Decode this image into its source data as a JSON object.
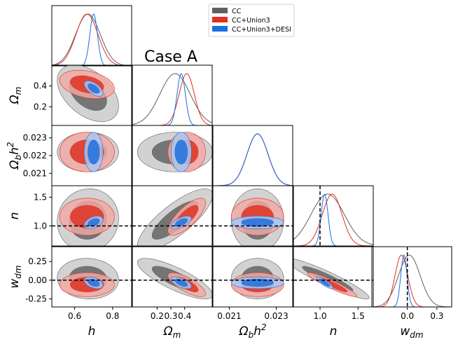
{
  "chart_data": {
    "type": "triangle-corner",
    "title": "Case A",
    "legend_placement": "top-right",
    "parameters": [
      {
        "key": "h",
        "label_base": "h",
        "label_sub": "",
        "label_sup": "",
        "range": [
          0.48,
          0.9
        ],
        "ticks": [
          "0.6",
          "0.8"
        ],
        "tick_values": [
          0.6,
          0.8
        ]
      },
      {
        "key": "Om",
        "label_base": "Ω",
        "label_sub": "m",
        "label_sup": "",
        "range": [
          0.02,
          0.6
        ],
        "ticks": [
          "0.2",
          "0.3",
          "0.4"
        ],
        "tick_values": [
          0.2,
          0.3,
          0.4
        ],
        "row_ticks": [
          "0.2",
          "0.4"
        ],
        "row_tick_values": [
          0.2,
          0.4
        ]
      },
      {
        "key": "Obh2",
        "label_base": "Ω",
        "label_sub": "b",
        "label_sup": "2",
        "label_mid": "h",
        "range": [
          0.0203,
          0.0237
        ],
        "ticks": [
          "0.021",
          "0.023"
        ],
        "tick_values": [
          0.021,
          0.023
        ],
        "row_ticks": [
          "0.021",
          "0.022",
          "0.023"
        ],
        "row_tick_values": [
          0.021,
          0.022,
          0.023
        ]
      },
      {
        "key": "n",
        "label_base": "n",
        "label_sub": "",
        "label_sup": "",
        "range": [
          0.65,
          1.7
        ],
        "ticks": [
          "1.0",
          "1.5"
        ],
        "tick_values": [
          1.0,
          1.5
        ]
      },
      {
        "key": "wdm",
        "label_base": "w",
        "label_sub": "dm",
        "label_sup": "",
        "range": [
          -0.36,
          0.45
        ],
        "ticks": [
          "-0.25",
          "0.00",
          "0.25"
        ],
        "tick_values": [
          -0.25,
          0.0,
          0.25
        ],
        "col_ticks": [
          "0.0",
          "0.3"
        ],
        "col_tick_values": [
          0.0,
          0.3
        ]
      }
    ],
    "reference_lines": [
      {
        "param": "n",
        "value": 1.0,
        "style": "dashed"
      },
      {
        "param": "wdm",
        "value": 0.0,
        "style": "dashed"
      }
    ],
    "series": [
      {
        "name": "CC",
        "color": "#606060",
        "mean": {
          "h": 0.67,
          "Om": 0.33,
          "Obh2": 0.0222,
          "n": 1.1,
          "wdm": 0.02
        },
        "sigma": {
          "h": 0.065,
          "Om": 0.11,
          "Obh2": 0.00045,
          "n": 0.22,
          "wdm": 0.11
        },
        "corr": {
          "h|Om": -0.45,
          "h|Obh2": 0.0,
          "h|n": 0.05,
          "h|wdm": -0.05,
          "Om|Obh2": 0.0,
          "Om|n": 0.8,
          "Om|wdm": -0.8,
          "Obh2|n": 0.0,
          "Obh2|wdm": 0.0,
          "n|wdm": -0.93
        }
      },
      {
        "name": "CC+Union3",
        "color": "#e03020",
        "mean": {
          "h": 0.665,
          "Om": 0.415,
          "Obh2": 0.0222,
          "n": 1.16,
          "wdm": -0.06
        },
        "sigma": {
          "h": 0.058,
          "Om": 0.055,
          "Obh2": 0.00045,
          "n": 0.13,
          "wdm": 0.065
        },
        "corr": {
          "h|Om": -0.3,
          "h|Obh2": 0.0,
          "h|n": 0.0,
          "h|wdm": 0.0,
          "Om|Obh2": 0.0,
          "Om|n": 0.75,
          "Om|wdm": -0.75,
          "Obh2|n": 0.0,
          "Obh2|wdm": 0.0,
          "n|wdm": -0.93
        }
      },
      {
        "name": "CC+Union3+DESI",
        "color": "#1a6fe0",
        "mean": {
          "h": 0.7,
          "Om": 0.375,
          "Obh2": 0.0222,
          "n": 1.06,
          "wdm": -0.035
        },
        "sigma": {
          "h": 0.02,
          "Om": 0.03,
          "Obh2": 0.00045,
          "n": 0.045,
          "wdm": 0.032
        },
        "corr": {
          "h|Om": -0.6,
          "h|Obh2": 0.0,
          "h|n": 0.4,
          "h|wdm": -0.4,
          "Om|Obh2": 0.0,
          "Om|n": 0.6,
          "Om|wdm": -0.6,
          "Obh2|n": 0.0,
          "Obh2|wdm": 0.0,
          "n|wdm": -0.85
        }
      }
    ]
  }
}
